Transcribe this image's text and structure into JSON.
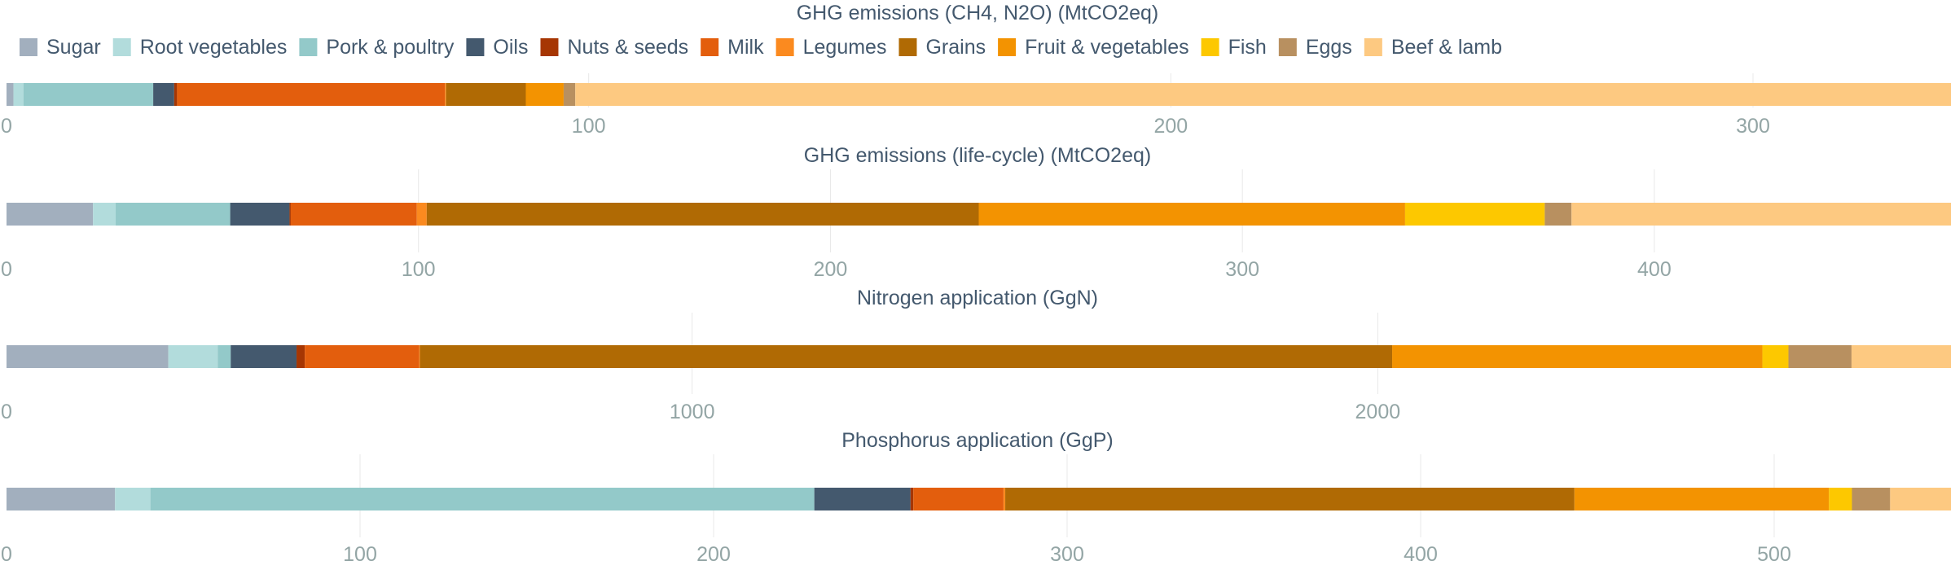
{
  "colors": {
    "Sugar": "#a2afbe",
    "Root vegetables": "#b2dcdc",
    "Pork & poultry": "#93c9c9",
    "Oils": "#44596e",
    "Nuts & seeds": "#a63603",
    "Milk": "#e35e0d",
    "Legumes": "#fb8a1f",
    "Grains": "#b06a04",
    "Fruit & vegetables": "#f39301",
    "Fish": "#fdc800",
    "Eggs": "#b89060",
    "Beef & lamb": "#fdc981"
  },
  "legend": [
    "Sugar",
    "Root vegetables",
    "Pork & poultry",
    "Oils",
    "Nuts & seeds",
    "Milk",
    "Legumes",
    "Grains",
    "Fruit & vegetables",
    "Fish",
    "Eggs",
    "Beef & lamb"
  ],
  "chart_data": [
    {
      "type": "bar",
      "orientation": "horizontal-stacked",
      "title": "GHG emissions (CH4, N2O) (MtCO2eq)",
      "xlim": [
        0,
        334
      ],
      "ticks": [
        0,
        100,
        200,
        300
      ],
      "series": [
        {
          "name": "Sugar",
          "value": 1.2
        },
        {
          "name": "Root vegetables",
          "value": 1.7
        },
        {
          "name": "Pork & poultry",
          "value": 22.3
        },
        {
          "name": "Oils",
          "value": 3.6
        },
        {
          "name": "Nuts & seeds",
          "value": 0.5
        },
        {
          "name": "Milk",
          "value": 46.0
        },
        {
          "name": "Legumes",
          "value": 0.2
        },
        {
          "name": "Grains",
          "value": 13.7
        },
        {
          "name": "Fruit & vegetables",
          "value": 6.5
        },
        {
          "name": "Fish",
          "value": 0.0
        },
        {
          "name": "Eggs",
          "value": 2.0
        },
        {
          "name": "Beef & lamb",
          "value": 236.3
        }
      ]
    },
    {
      "type": "bar",
      "orientation": "horizontal-stacked",
      "title": "GHG emissions (life-cycle) (MtCO2eq)",
      "xlim": [
        0,
        472
      ],
      "ticks": [
        0,
        100,
        200,
        300,
        400
      ],
      "series": [
        {
          "name": "Sugar",
          "value": 21.0
        },
        {
          "name": "Root vegetables",
          "value": 5.5
        },
        {
          "name": "Pork & poultry",
          "value": 27.8
        },
        {
          "name": "Oils",
          "value": 14.4
        },
        {
          "name": "Nuts & seeds",
          "value": 0.3
        },
        {
          "name": "Milk",
          "value": 30.6
        },
        {
          "name": "Legumes",
          "value": 2.4
        },
        {
          "name": "Grains",
          "value": 134.0
        },
        {
          "name": "Fruit & vegetables",
          "value": 103.5
        },
        {
          "name": "Fish",
          "value": 33.9
        },
        {
          "name": "Eggs",
          "value": 6.5
        },
        {
          "name": "Beef & lamb",
          "value": 92.1
        }
      ]
    },
    {
      "type": "bar",
      "orientation": "horizontal-stacked",
      "title": "Nitrogen application (GgN)",
      "xlim": [
        0,
        2836
      ],
      "ticks": [
        0,
        1000,
        2000
      ],
      "series": [
        {
          "name": "Sugar",
          "value": 236
        },
        {
          "name": "Root vegetables",
          "value": 72
        },
        {
          "name": "Pork & poultry",
          "value": 19
        },
        {
          "name": "Oils",
          "value": 96
        },
        {
          "name": "Nuts & seeds",
          "value": 12
        },
        {
          "name": "Milk",
          "value": 167
        },
        {
          "name": "Legumes",
          "value": 1
        },
        {
          "name": "Grains",
          "value": 1418
        },
        {
          "name": "Fruit & vegetables",
          "value": 540
        },
        {
          "name": "Fish",
          "value": 38
        },
        {
          "name": "Eggs",
          "value": 92
        },
        {
          "name": "Beef & lamb",
          "value": 145
        }
      ]
    },
    {
      "type": "bar",
      "orientation": "horizontal-stacked",
      "title": "Phosphorus application (GgP)",
      "xlim": [
        0,
        550
      ],
      "ticks": [
        0,
        100,
        200,
        300,
        400,
        500
      ],
      "series": [
        {
          "name": "Sugar",
          "value": 30.7
        },
        {
          "name": "Root vegetables",
          "value": 10.0
        },
        {
          "name": "Pork & poultry",
          "value": 187.8
        },
        {
          "name": "Oils",
          "value": 27.2
        },
        {
          "name": "Nuts & seeds",
          "value": 0.8
        },
        {
          "name": "Milk",
          "value": 25.5
        },
        {
          "name": "Legumes",
          "value": 0.5
        },
        {
          "name": "Grains",
          "value": 161.0
        },
        {
          "name": "Fruit & vegetables",
          "value": 72.0
        },
        {
          "name": "Fish",
          "value": 6.5
        },
        {
          "name": "Eggs",
          "value": 10.8
        },
        {
          "name": "Beef & lamb",
          "value": 17.2
        }
      ]
    }
  ]
}
